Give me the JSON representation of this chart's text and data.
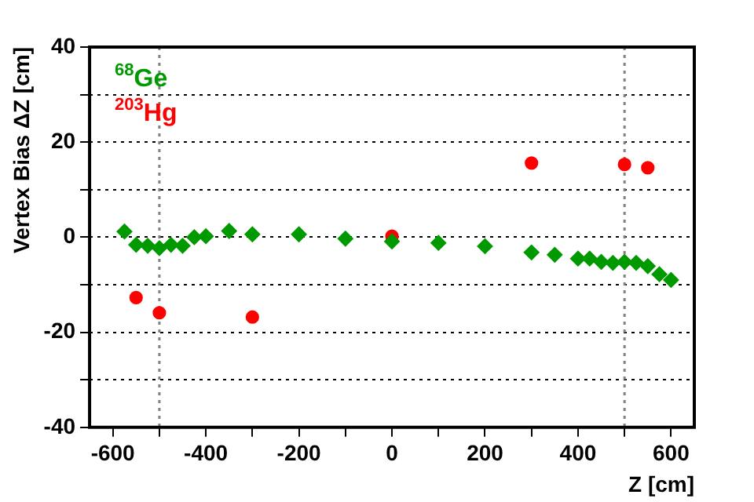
{
  "chart_data": {
    "type": "scatter",
    "xlabel": "Z [cm]",
    "ylabel": "Vertex Bias ΔZ [cm]",
    "xlim": [
      -650,
      650
    ],
    "ylim": [
      -40,
      40
    ],
    "xticks": [
      -600,
      {
        "value": -500,
        "label": null
      },
      -400,
      {
        "value": -300,
        "label": null
      },
      -200,
      {
        "value": -100,
        "label": null
      },
      0,
      {
        "value": 100,
        "label": null
      },
      200,
      {
        "value": 300,
        "label": null
      },
      400,
      {
        "value": 500,
        "label": null
      },
      600
    ],
    "yticks": [
      -40,
      {
        "value": -30,
        "label": null
      },
      -20,
      {
        "value": -10,
        "label": null
      },
      0,
      {
        "value": 10,
        "label": null
      },
      20,
      {
        "value": 30,
        "label": null
      },
      40
    ],
    "grid": "y",
    "legend": "top left",
    "ref_lines": [
      {
        "axis": "x",
        "value": -500,
        "color": "#808080",
        "line_style": "dotted"
      },
      {
        "axis": "x",
        "value": 500,
        "color": "#808080",
        "line_style": "dotted"
      }
    ],
    "series": [
      {
        "name": "$^{68}$Ge",
        "color": "#009900",
        "marker": "diamond",
        "x": [
          -575,
          -550,
          -525,
          -500,
          -475,
          -450,
          -425,
          -400,
          -350,
          -300,
          -200,
          -100,
          0,
          100,
          200,
          300,
          350,
          400,
          425,
          450,
          475,
          500,
          525,
          550,
          575,
          600
        ],
        "values": [
          1.2,
          -1.6,
          -1.8,
          -2.3,
          -1.6,
          -1.8,
          0.0,
          0.2,
          1.3,
          0.6,
          0.6,
          -0.3,
          -0.9,
          -1.2,
          -1.9,
          -3.2,
          -3.7,
          -4.5,
          -4.5,
          -5.2,
          -5.4,
          -5.2,
          -5.4,
          -6.1,
          -7.8,
          -9.0
        ]
      },
      {
        "name": "$^{203}$Hg",
        "color": "#ff0000",
        "marker": "circle",
        "x": [
          -550,
          -500,
          -300,
          0,
          300,
          500,
          550
        ],
        "values": [
          -12.7,
          -15.9,
          -16.8,
          0.2,
          15.6,
          15.3,
          14.6
        ]
      }
    ]
  }
}
